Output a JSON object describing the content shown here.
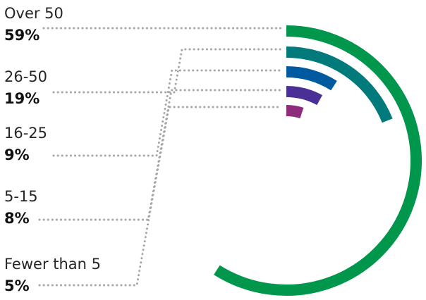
{
  "chart_data": {
    "type": "radial-bar",
    "title": "",
    "categories": [
      "Over 50",
      "26-50",
      "16-25",
      "5-15",
      "Fewer than 5"
    ],
    "values": [
      59,
      19,
      9,
      8,
      5
    ],
    "value_labels": [
      "59%",
      "19%",
      "9%",
      "8%",
      "5%"
    ],
    "unit": "%",
    "colors": [
      "#00964b",
      "#007a7a",
      "#005aa0",
      "#4a2f96",
      "#8c2c7a"
    ],
    "leader_color": "#a6a6a6",
    "grid": false,
    "legend": "none"
  }
}
